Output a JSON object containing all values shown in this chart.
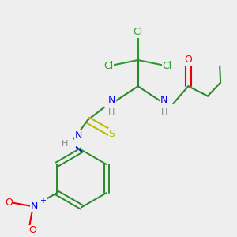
{
  "bg_color": "#eeeeee",
  "atom_colors": {
    "C": "#2a8a2a",
    "N": "#0000ee",
    "O": "#ee0000",
    "S": "#bbbb00",
    "Cl": "#2a9a2a",
    "H": "#888888",
    "bond": "#2a8a2a"
  }
}
